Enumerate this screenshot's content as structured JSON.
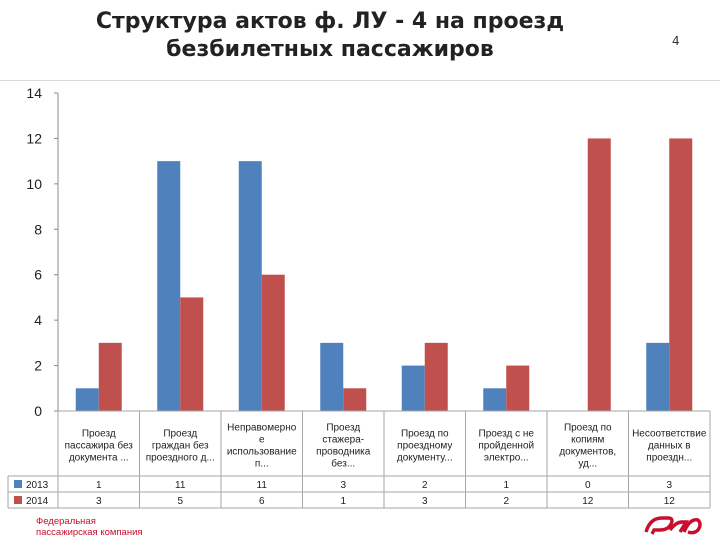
{
  "slide": {
    "title": "Структура актов ф. ЛУ - 4 на проезд безбилетных пассажиров",
    "number": "4",
    "company": [
      "Федеральная",
      "пассажирская компания"
    ]
  },
  "chart_data": {
    "type": "bar",
    "ylim": [
      0,
      14
    ],
    "yticks": [
      0,
      2,
      4,
      6,
      8,
      10,
      12,
      14
    ],
    "grid": false,
    "legend": "data-table-left",
    "categories": [
      [
        "Проезд",
        "пассажира без",
        "документа ..."
      ],
      [
        "Проезд",
        "граждан без",
        "проездного д..."
      ],
      [
        "Неправомерно",
        "е",
        "использование",
        "п..."
      ],
      [
        "Проезд",
        "стажера-",
        "проводника",
        "без..."
      ],
      [
        "Проезд по",
        "проездному",
        "документу..."
      ],
      [
        "Проезд с не",
        "пройденной",
        "электро..."
      ],
      [
        "Проезд по",
        "копиям",
        "документов,",
        "уд..."
      ],
      [
        "Несоответствие",
        "данных в",
        "проездн..."
      ]
    ],
    "series": [
      {
        "name": "2013",
        "color": "#4f81bd",
        "values": [
          1,
          11,
          11,
          3,
          2,
          1,
          0,
          3
        ]
      },
      {
        "name": "2014",
        "color": "#c0504d",
        "values": [
          3,
          5,
          6,
          1,
          3,
          2,
          12,
          12
        ]
      }
    ]
  }
}
